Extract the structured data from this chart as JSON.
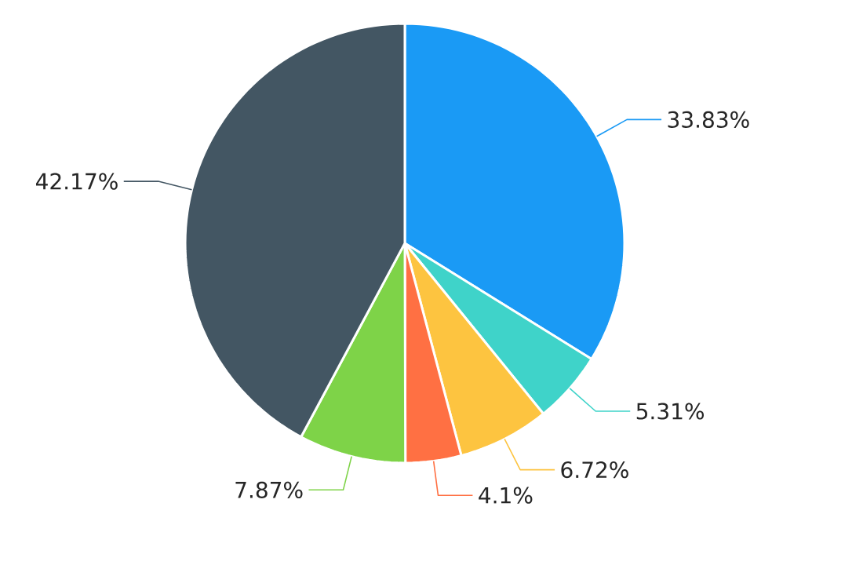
{
  "chart_data": {
    "type": "pie",
    "categories": [
      null,
      null,
      null,
      null,
      null,
      null
    ],
    "values": [
      33.83,
      5.31,
      6.72,
      4.1,
      7.87,
      42.17
    ],
    "value_labels": [
      "33.83%",
      "5.31%",
      "6.72%",
      "4.1%",
      "7.87%",
      "42.17%"
    ],
    "colors": [
      "#1a9af5",
      "#3fd3c9",
      "#fdc440",
      "#ff7043",
      "#7ed348",
      "#435663"
    ]
  }
}
